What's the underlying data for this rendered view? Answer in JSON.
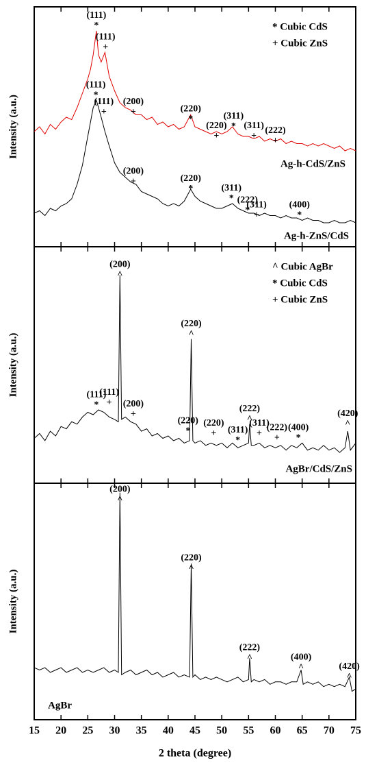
{
  "chart_data": [
    {
      "type": "line",
      "ylabel": "Intensity (a.u.)",
      "xlim": [
        15,
        75
      ],
      "ylim": [
        0,
        100
      ],
      "legend": [
        "* Cubic CdS",
        "+ Cubic ZnS"
      ],
      "x": [
        15,
        16,
        17,
        18,
        19,
        20,
        21,
        22,
        23,
        24,
        25,
        25.5,
        26,
        26.6,
        27,
        27.5,
        28.2,
        29,
        30,
        31,
        32,
        33,
        34,
        35,
        36,
        37,
        38,
        39,
        40,
        41,
        42,
        43,
        44.2,
        45,
        46,
        47,
        48,
        49,
        50,
        51,
        52,
        53,
        54,
        55,
        56,
        57,
        58,
        59,
        60,
        61,
        62,
        63,
        64,
        65,
        66,
        67,
        68,
        69,
        70,
        71,
        72,
        73,
        74,
        75
      ],
      "series": [
        {
          "name": "Ag-h-CdS/ZnS",
          "color": "#e00000",
          "values": [
            48,
            50,
            47,
            51,
            49,
            52,
            54,
            53,
            58,
            64,
            70,
            74,
            80,
            90,
            80,
            77,
            81,
            71,
            65,
            60,
            58,
            57,
            55,
            55,
            53,
            54,
            51,
            52,
            50,
            51,
            49,
            50,
            55,
            50,
            49,
            48,
            47,
            48,
            47,
            48,
            50,
            47,
            46,
            46,
            45,
            46,
            44,
            45,
            44,
            45,
            43,
            44,
            43,
            43,
            42,
            43,
            42,
            43,
            42,
            41,
            42,
            40,
            41,
            40
          ]
        },
        {
          "name": "Ag-h-ZnS/CdS",
          "color": "#000000",
          "values": [
            14,
            15,
            13,
            16,
            15,
            17,
            18,
            20,
            26,
            34,
            46,
            52,
            58,
            61,
            58,
            54,
            48,
            42,
            35,
            31,
            29,
            27,
            26,
            23,
            22,
            21,
            20,
            18,
            17,
            18,
            17,
            19,
            24,
            21,
            19,
            18,
            17,
            16,
            16,
            17,
            18,
            16,
            15,
            14,
            14,
            13,
            14,
            13,
            13,
            12,
            13,
            12,
            12,
            11,
            12,
            11,
            11,
            10,
            10,
            11,
            10,
            10,
            11,
            10
          ]
        }
      ],
      "annotations": [
        {
          "marker": "*",
          "label": "(111)",
          "x": 26.6,
          "y": 92
        },
        {
          "marker": "+",
          "label": "(111)",
          "x": 28.3,
          "y": 83
        },
        {
          "marker": "*",
          "label": "(111)",
          "x": 26.5,
          "y": 63
        },
        {
          "marker": "+",
          "label": "(111)",
          "x": 28.0,
          "y": 56
        },
        {
          "marker": "+",
          "label": "(200)",
          "x": 33.5,
          "y": 56
        },
        {
          "marker": "*",
          "label": "(220)",
          "x": 44.2,
          "y": 53
        },
        {
          "marker": "+",
          "label": "(220)",
          "x": 49,
          "y": 46
        },
        {
          "marker": "*",
          "label": "(311)",
          "x": 52.2,
          "y": 50
        },
        {
          "marker": "+",
          "label": "(311)",
          "x": 56,
          "y": 46
        },
        {
          "marker": "+",
          "label": "(222)",
          "x": 60,
          "y": 44
        },
        {
          "marker": "+",
          "label": "(200)",
          "x": 33.5,
          "y": 27
        },
        {
          "marker": "*",
          "label": "(220)",
          "x": 44.2,
          "y": 24
        },
        {
          "marker": "*",
          "label": "(311)",
          "x": 51.8,
          "y": 20
        },
        {
          "marker": "*",
          "label": "(222)",
          "x": 54.8,
          "y": 15
        },
        {
          "marker": "+",
          "label": "(311)",
          "x": 56.5,
          "y": 13
        },
        {
          "marker": "*",
          "label": "(400)",
          "x": 64.5,
          "y": 13
        }
      ]
    },
    {
      "type": "line",
      "ylabel": "Intensity (a.u.)",
      "xlim": [
        15,
        75
      ],
      "ylim": [
        0,
        100
      ],
      "legend": [
        "^ Cubic AgBr",
        "* Cubic CdS",
        "+ Cubic ZnS"
      ],
      "x": [
        15,
        16,
        17,
        18,
        19,
        20,
        21,
        22,
        23,
        24,
        25,
        26,
        27,
        28,
        29,
        30,
        30.7,
        31,
        31.3,
        32,
        33,
        34,
        35,
        36,
        37,
        38,
        39,
        40,
        41,
        42,
        43,
        44,
        44.3,
        44.6,
        45,
        46,
        47,
        48,
        49,
        50,
        51,
        52,
        53,
        54,
        55,
        55.2,
        55.5,
        56,
        57,
        58,
        59,
        60,
        61,
        62,
        63,
        64,
        65,
        66,
        67,
        68,
        69,
        70,
        71,
        72,
        73,
        73.5,
        74,
        75
      ],
      "series": [
        {
          "name": "AgBr/CdS/ZnS",
          "color": "#000000",
          "values": [
            19,
            21,
            18,
            22,
            20,
            24,
            23,
            26,
            25,
            28,
            30,
            29,
            31,
            30,
            28,
            27,
            26,
            88,
            27,
            28,
            26,
            25,
            22,
            23,
            20,
            21,
            19,
            20,
            18,
            19,
            17,
            18,
            61,
            18,
            17,
            18,
            16,
            17,
            16,
            17,
            15,
            17,
            15,
            16,
            17,
            25,
            16,
            16,
            17,
            15,
            16,
            15,
            16,
            14,
            16,
            15,
            17,
            14,
            15,
            14,
            16,
            14,
            15,
            13,
            15,
            22,
            14,
            17
          ]
        }
      ],
      "annotations": [
        {
          "marker": "^",
          "label": "(200)",
          "x": 31,
          "y": 88
        },
        {
          "marker": "^",
          "label": "(220)",
          "x": 44.3,
          "y": 63
        },
        {
          "marker": "*",
          "label": "(111)",
          "x": 26.6,
          "y": 33
        },
        {
          "marker": "+",
          "label": "(111)",
          "x": 29,
          "y": 34
        },
        {
          "marker": "+",
          "label": "(200)",
          "x": 33.5,
          "y": 29
        },
        {
          "marker": "*",
          "label": "(220)",
          "x": 43.7,
          "y": 22
        },
        {
          "marker": "+",
          "label": "(220)",
          "x": 48.5,
          "y": 21
        },
        {
          "marker": "*",
          "label": "(311)",
          "x": 53,
          "y": 18
        },
        {
          "marker": "^",
          "label": "(222)",
          "x": 55.2,
          "y": 27
        },
        {
          "marker": "+",
          "label": "(311)",
          "x": 57,
          "y": 21
        },
        {
          "marker": "+",
          "label": "(222)",
          "x": 60.3,
          "y": 19
        },
        {
          "marker": "*",
          "label": "(400)",
          "x": 64.3,
          "y": 19
        },
        {
          "marker": "^",
          "label": "(420)",
          "x": 73.5,
          "y": 25
        }
      ]
    },
    {
      "type": "line",
      "ylabel": "Intensity (a.u.)",
      "xlabel": "2 theta (degree)",
      "xlim": [
        15,
        75
      ],
      "ylim": [
        0,
        100
      ],
      "xticks": [
        15,
        20,
        25,
        30,
        35,
        40,
        45,
        50,
        55,
        60,
        65,
        70,
        75
      ],
      "x": [
        15,
        16,
        17,
        18,
        19,
        20,
        21,
        22,
        23,
        24,
        25,
        26,
        27,
        28,
        29,
        30,
        30.7,
        31,
        31.3,
        32,
        33,
        34,
        35,
        36,
        37,
        38,
        39,
        40,
        41,
        42,
        43,
        44,
        44.3,
        44.6,
        45,
        46,
        47,
        48,
        49,
        50,
        51,
        52,
        53,
        54,
        55,
        55.2,
        55.5,
        56,
        57,
        58,
        59,
        60,
        61,
        62,
        63,
        64,
        64.8,
        65.2,
        66,
        67,
        68,
        69,
        70,
        71,
        72,
        73,
        73.8,
        74.3,
        75
      ],
      "series": [
        {
          "name": "AgBr",
          "color": "#000000",
          "values": [
            22,
            21,
            22,
            20,
            21,
            22,
            20,
            21,
            22,
            20,
            21,
            20,
            21,
            22,
            20,
            21,
            20,
            96,
            19,
            20,
            21,
            19,
            20,
            21,
            19,
            20,
            18,
            19,
            20,
            18,
            19,
            18,
            66,
            18,
            19,
            17,
            18,
            17,
            18,
            17,
            16,
            17,
            18,
            16,
            17,
            26,
            16,
            17,
            16,
            17,
            15,
            16,
            16,
            15,
            16,
            16,
            21,
            15,
            16,
            15,
            16,
            14,
            15,
            14,
            15,
            14,
            18,
            12,
            13
          ]
        }
      ],
      "annotations": [
        {
          "marker": "^",
          "label": "(200)",
          "x": 31,
          "y": 93
        },
        {
          "marker": "^",
          "label": "(220)",
          "x": 44.3,
          "y": 64
        },
        {
          "marker": "^",
          "label": "(222)",
          "x": 55.2,
          "y": 26
        },
        {
          "marker": "^",
          "label": "(400)",
          "x": 64.8,
          "y": 22
        },
        {
          "marker": "^",
          "label": "(420)",
          "x": 73.8,
          "y": 18
        }
      ]
    }
  ]
}
